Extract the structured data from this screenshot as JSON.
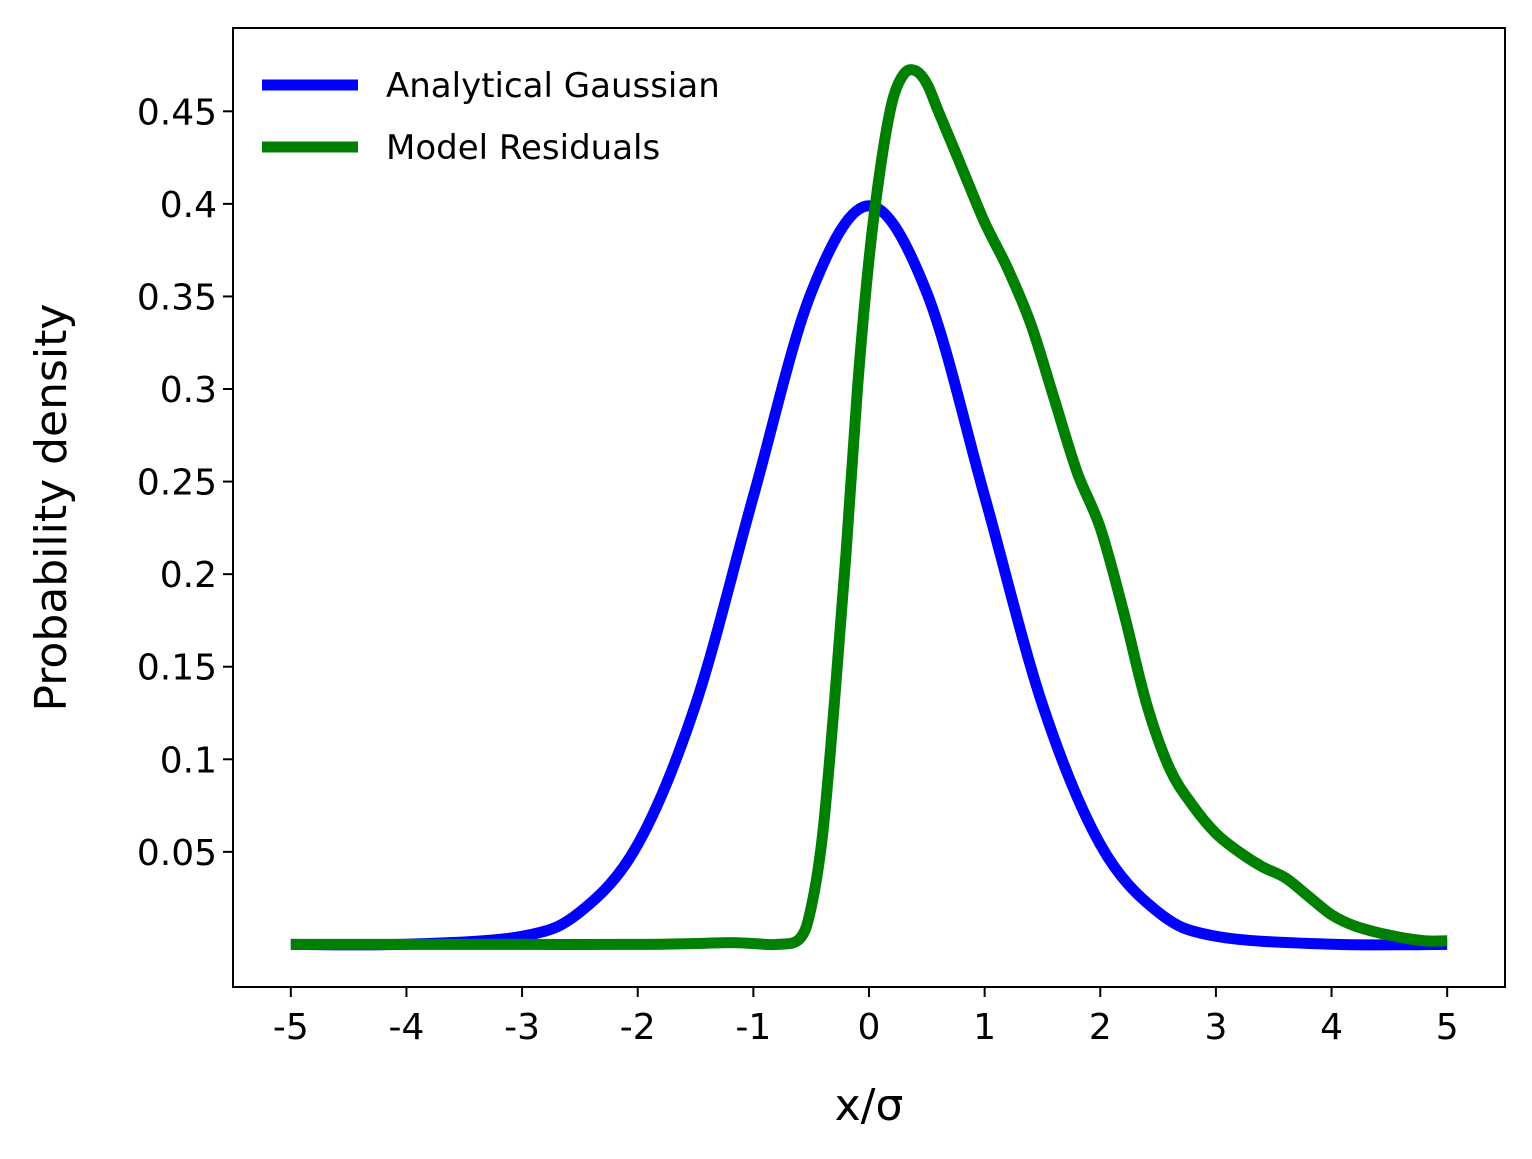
{
  "chart_data": {
    "type": "line",
    "xlabel": "x/σ",
    "ylabel": "Probability density",
    "xlim": [
      -5.5,
      5.5
    ],
    "ylim": [
      -0.023,
      0.495
    ],
    "x_ticks": [
      -5,
      -4,
      -3,
      -2,
      -1,
      0,
      1,
      2,
      3,
      4,
      5
    ],
    "x_tick_labels": [
      "-5",
      "-4",
      "-3",
      "-2",
      "-1",
      "0",
      "1",
      "2",
      "3",
      "4",
      "5"
    ],
    "y_ticks": [
      0.05,
      0.1,
      0.15,
      0.2,
      0.25,
      0.3,
      0.35,
      0.4,
      0.45
    ],
    "y_tick_labels": [
      "0.05",
      "0.1",
      "0.15",
      "0.2",
      "0.25",
      "0.3",
      "0.35",
      "0.4",
      "0.45"
    ],
    "grid": false,
    "legend_position": "top-left",
    "series": [
      {
        "name": "Analytical Gaussian",
        "color": "#0000ff",
        "x": [
          -5.0,
          -4.0,
          -3.0,
          -2.5,
          -2.0,
          -1.5,
          -1.0,
          -0.5,
          0.0,
          0.5,
          1.0,
          1.5,
          2.0,
          2.5,
          3.0,
          4.0,
          5.0
        ],
        "y": [
          0.0,
          0.0001,
          0.0044,
          0.0175,
          0.054,
          0.1295,
          0.242,
          0.352,
          0.399,
          0.352,
          0.242,
          0.1295,
          0.054,
          0.0175,
          0.0044,
          0.0001,
          0.0
        ]
      },
      {
        "name": "Model Residuals",
        "color": "#008000",
        "x": [
          -5.0,
          -4.0,
          -3.0,
          -2.0,
          -1.5,
          -1.2,
          -1.0,
          -0.8,
          -0.6,
          -0.5,
          -0.4,
          -0.3,
          -0.2,
          -0.1,
          0.0,
          0.1,
          0.2,
          0.3,
          0.4,
          0.5,
          0.6,
          0.8,
          1.0,
          1.2,
          1.4,
          1.6,
          1.8,
          2.0,
          2.2,
          2.4,
          2.6,
          2.8,
          3.0,
          3.2,
          3.4,
          3.6,
          3.8,
          4.0,
          4.2,
          4.5,
          4.8,
          5.0
        ],
        "y": [
          0.0,
          0.0,
          0.0,
          0.0,
          0.0005,
          0.001,
          0.0005,
          0.0,
          0.003,
          0.02,
          0.06,
          0.13,
          0.21,
          0.3,
          0.37,
          0.42,
          0.455,
          0.47,
          0.472,
          0.465,
          0.45,
          0.42,
          0.39,
          0.365,
          0.335,
          0.295,
          0.255,
          0.225,
          0.18,
          0.13,
          0.095,
          0.075,
          0.06,
          0.05,
          0.042,
          0.036,
          0.026,
          0.016,
          0.01,
          0.005,
          0.002,
          0.002
        ]
      }
    ]
  }
}
